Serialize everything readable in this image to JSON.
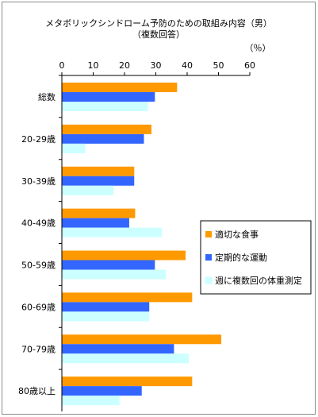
{
  "chart_data": {
    "type": "bar",
    "orientation": "horizontal",
    "title": "メタボリックシンドローム予防のための取組み内容（男）",
    "subtitle": "（複数回答）",
    "unit": "（％）",
    "xlim": [
      0,
      60
    ],
    "ticks": [
      "0",
      "10",
      "20",
      "30",
      "40",
      "50",
      "60"
    ],
    "grid": false,
    "legend_position": "right",
    "categories": [
      "総数",
      "20-29歳",
      "30-39歳",
      "40-49歳",
      "50-59歳",
      "60-69歳",
      "70-79歳",
      "80歳以上"
    ],
    "series": [
      {
        "name": "適切な食事",
        "color": "#ff9900",
        "values": [
          36.8,
          28.6,
          23.1,
          23.4,
          39.5,
          41.6,
          50.9,
          41.6
        ]
      },
      {
        "name": "定期的な運動",
        "color": "#3366ff",
        "values": [
          29.7,
          26.2,
          23.1,
          21.5,
          29.7,
          27.9,
          35.8,
          25.5
        ]
      },
      {
        "name": "週に複数回の体重測定",
        "color": "#ccffff",
        "values": [
          27.5,
          7.5,
          16.5,
          31.9,
          33.2,
          27.9,
          40.5,
          18.4
        ]
      }
    ]
  }
}
